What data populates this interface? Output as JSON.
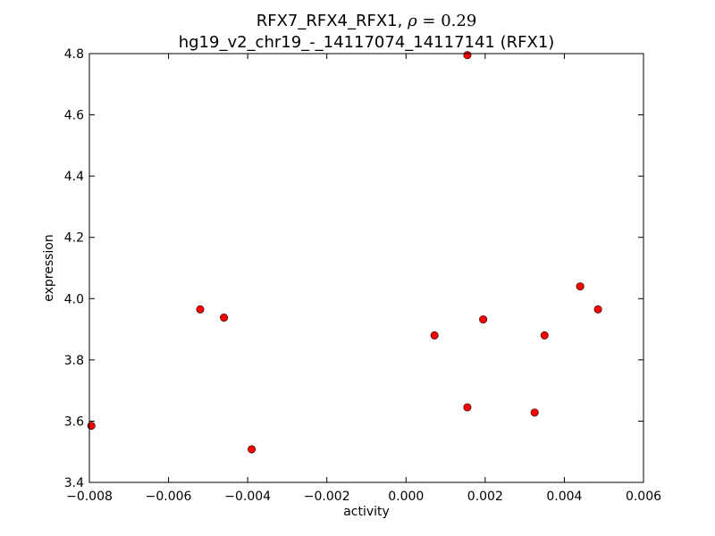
{
  "chart_data": {
    "type": "scatter",
    "title_line1_prefix": "RFX7_RFX4_RFX1, ",
    "title_rho_symbol": "ρ",
    "title_rho_eq": " = 0.29",
    "title_line2": "hg19_v2_chr19_-_14117074_14117141 (RFX1)",
    "xlabel": "activity",
    "ylabel": "expression",
    "xlim": [
      -0.008,
      0.006
    ],
    "ylim": [
      3.4,
      4.8
    ],
    "xticks": [
      {
        "value": -0.008,
        "label": "−0.008"
      },
      {
        "value": -0.006,
        "label": "−0.006"
      },
      {
        "value": -0.004,
        "label": "−0.004"
      },
      {
        "value": -0.002,
        "label": "−0.002"
      },
      {
        "value": 0.0,
        "label": "0.000"
      },
      {
        "value": 0.002,
        "label": "0.002"
      },
      {
        "value": 0.004,
        "label": "0.004"
      },
      {
        "value": 0.006,
        "label": "0.006"
      }
    ],
    "yticks": [
      {
        "value": 3.4,
        "label": "3.4"
      },
      {
        "value": 3.6,
        "label": "3.6"
      },
      {
        "value": 3.8,
        "label": "3.8"
      },
      {
        "value": 4.0,
        "label": "4.0"
      },
      {
        "value": 4.2,
        "label": "4.2"
      },
      {
        "value": 4.4,
        "label": "4.4"
      },
      {
        "value": 4.6,
        "label": "4.6"
      },
      {
        "value": 4.8,
        "label": "4.8"
      }
    ],
    "grid": false,
    "marker_color": "#ff0000",
    "points": [
      {
        "x": -0.00795,
        "y": 3.585
      },
      {
        "x": -0.0052,
        "y": 3.965
      },
      {
        "x": -0.0046,
        "y": 3.938
      },
      {
        "x": -0.0039,
        "y": 3.508
      },
      {
        "x": 0.00072,
        "y": 3.88
      },
      {
        "x": 0.00155,
        "y": 4.795
      },
      {
        "x": 0.00155,
        "y": 3.645
      },
      {
        "x": 0.00195,
        "y": 3.932
      },
      {
        "x": 0.00325,
        "y": 3.628
      },
      {
        "x": 0.0035,
        "y": 3.88
      },
      {
        "x": 0.0044,
        "y": 4.04
      },
      {
        "x": 0.00485,
        "y": 3.965
      }
    ]
  }
}
